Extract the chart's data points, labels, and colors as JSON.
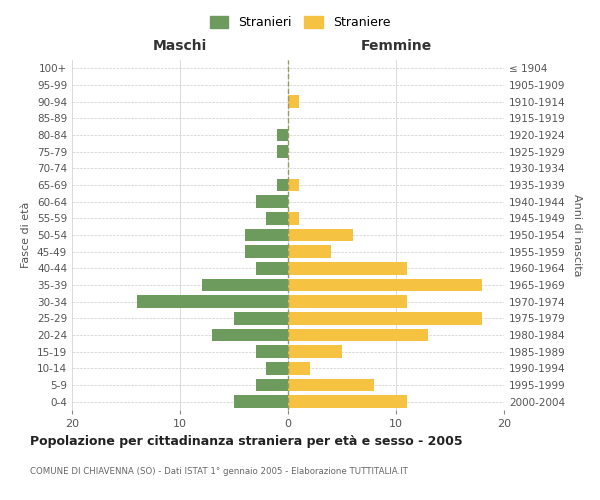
{
  "age_groups": [
    "0-4",
    "5-9",
    "10-14",
    "15-19",
    "20-24",
    "25-29",
    "30-34",
    "35-39",
    "40-44",
    "45-49",
    "50-54",
    "55-59",
    "60-64",
    "65-69",
    "70-74",
    "75-79",
    "80-84",
    "85-89",
    "90-94",
    "95-99",
    "100+"
  ],
  "birth_years": [
    "2000-2004",
    "1995-1999",
    "1990-1994",
    "1985-1989",
    "1980-1984",
    "1975-1979",
    "1970-1974",
    "1965-1969",
    "1960-1964",
    "1955-1959",
    "1950-1954",
    "1945-1949",
    "1940-1944",
    "1935-1939",
    "1930-1934",
    "1925-1929",
    "1920-1924",
    "1915-1919",
    "1910-1914",
    "1905-1909",
    "≤ 1904"
  ],
  "maschi": [
    5,
    3,
    2,
    3,
    7,
    5,
    14,
    8,
    3,
    4,
    4,
    2,
    3,
    1,
    0,
    1,
    1,
    0,
    0,
    0,
    0
  ],
  "femmine": [
    11,
    8,
    2,
    5,
    13,
    18,
    11,
    18,
    11,
    4,
    6,
    1,
    0,
    1,
    0,
    0,
    0,
    0,
    1,
    0,
    0
  ],
  "color_maschi": "#6d9b5e",
  "color_femmine": "#f5c242",
  "xlim": 20,
  "title": "Popolazione per cittadinanza straniera per età e sesso - 2005",
  "subtitle": "COMUNE DI CHIAVENNA (SO) - Dati ISTAT 1° gennaio 2005 - Elaborazione TUTTITALIA.IT",
  "ylabel_left": "Fasce di età",
  "ylabel_right": "Anni di nascita",
  "legend_stranieri": "Stranieri",
  "legend_straniere": "Straniere",
  "label_maschi": "Maschi",
  "label_femmine": "Femmine",
  "bg_color": "#ffffff",
  "grid_color": "#cccccc",
  "bar_height": 0.75
}
